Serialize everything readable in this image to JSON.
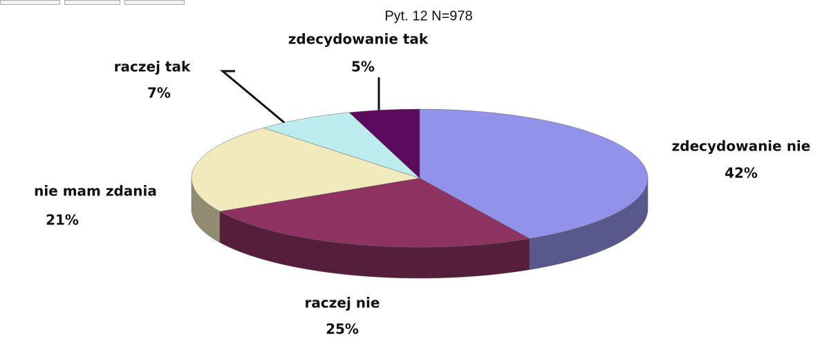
{
  "chart_data": {
    "type": "pie",
    "title": "Pyt. 12 N=978",
    "categories": [
      "zdecydowanie nie",
      "raczej nie",
      "nie mam zdania",
      "raczej tak",
      "zdecydowanie tak"
    ],
    "values": [
      42,
      25,
      21,
      7,
      5
    ],
    "value_labels": [
      "42%",
      "25%",
      "21%",
      "7%",
      "5%"
    ],
    "colors": [
      "#9292ea",
      "#8e3262",
      "#f0eabc",
      "#bcecee",
      "#5c0a5e"
    ]
  }
}
